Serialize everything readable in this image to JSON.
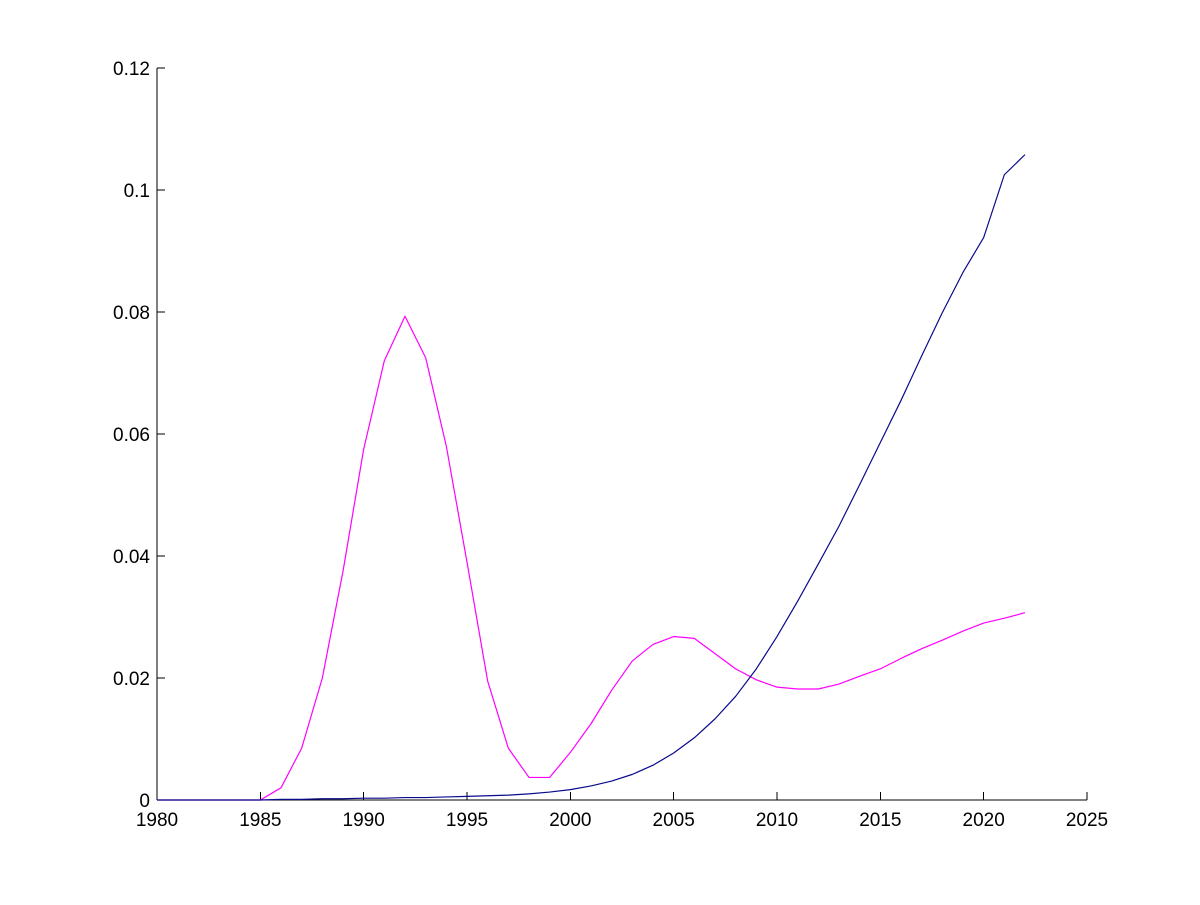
{
  "chart_data": {
    "type": "line",
    "title": "",
    "xlabel": "",
    "ylabel": "",
    "xlim": [
      1980,
      2025
    ],
    "ylim": [
      0,
      0.12
    ],
    "xticks": [
      1980,
      1985,
      1990,
      1995,
      2000,
      2005,
      2010,
      2015,
      2020,
      2025
    ],
    "xtick_labels": [
      "1980",
      "1985",
      "1990",
      "1995",
      "2000",
      "2005",
      "2010",
      "2015",
      "2020",
      "2025"
    ],
    "yticks": [
      0,
      0.02,
      0.04,
      0.06,
      0.08,
      0.1,
      0.12
    ],
    "ytick_labels": [
      "0",
      "0.02",
      "0.04",
      "0.06",
      "0.08",
      "0.1",
      "0.12"
    ],
    "grid": false,
    "legend": "none",
    "series": [
      {
        "color": "#ff00ff",
        "x": [
          1980,
          1981,
          1982,
          1983,
          1984,
          1985,
          1986,
          1987,
          1988,
          1989,
          1990,
          1991,
          1992,
          1993,
          1994,
          1995,
          1996,
          1997,
          1998,
          1999,
          2000,
          2001,
          2002,
          2003,
          2004,
          2005,
          2006,
          2007,
          2008,
          2009,
          2010,
          2011,
          2012,
          2013,
          2014,
          2015,
          2016,
          2017,
          2018,
          2019,
          2020,
          2021,
          2022
        ],
        "y": [
          0,
          0,
          0,
          0,
          0,
          0,
          0.002,
          0.0085,
          0.02,
          0.0375,
          0.0575,
          0.072,
          0.0793,
          0.0725,
          0.058,
          0.039,
          0.0195,
          0.0085,
          0.0037,
          0.0037,
          0.0078,
          0.0125,
          0.018,
          0.0228,
          0.0255,
          0.0268,
          0.0265,
          0.024,
          0.0215,
          0.0197,
          0.0185,
          0.0182,
          0.0182,
          0.019,
          0.0203,
          0.0215,
          0.0232,
          0.0248,
          0.0262,
          0.0277,
          0.029,
          0.0298,
          0.0307
        ]
      },
      {
        "color": "#0a0a8c",
        "x": [
          1980,
          1981,
          1982,
          1983,
          1984,
          1985,
          1986,
          1987,
          1988,
          1989,
          1990,
          1991,
          1992,
          1993,
          1994,
          1995,
          1996,
          1997,
          1998,
          1999,
          2000,
          2001,
          2002,
          2003,
          2004,
          2005,
          2006,
          2007,
          2008,
          2009,
          2010,
          2011,
          2012,
          2013,
          2014,
          2015,
          2016,
          2017,
          2018,
          2019,
          2020,
          2021,
          2022
        ],
        "y": [
          0,
          0,
          0,
          0,
          0,
          0,
          0.0001,
          0.0001,
          0.0002,
          0.0002,
          0.0003,
          0.0003,
          0.0004,
          0.0004,
          0.0005,
          0.0006,
          0.0007,
          0.0008,
          0.001,
          0.0013,
          0.0017,
          0.0023,
          0.0031,
          0.0042,
          0.0057,
          0.0077,
          0.0102,
          0.0133,
          0.017,
          0.0215,
          0.0268,
          0.0326,
          0.0387,
          0.0449,
          0.0517,
          0.0586,
          0.0655,
          0.0728,
          0.0799,
          0.0865,
          0.0922,
          0.1025,
          0.1058
        ]
      }
    ]
  }
}
